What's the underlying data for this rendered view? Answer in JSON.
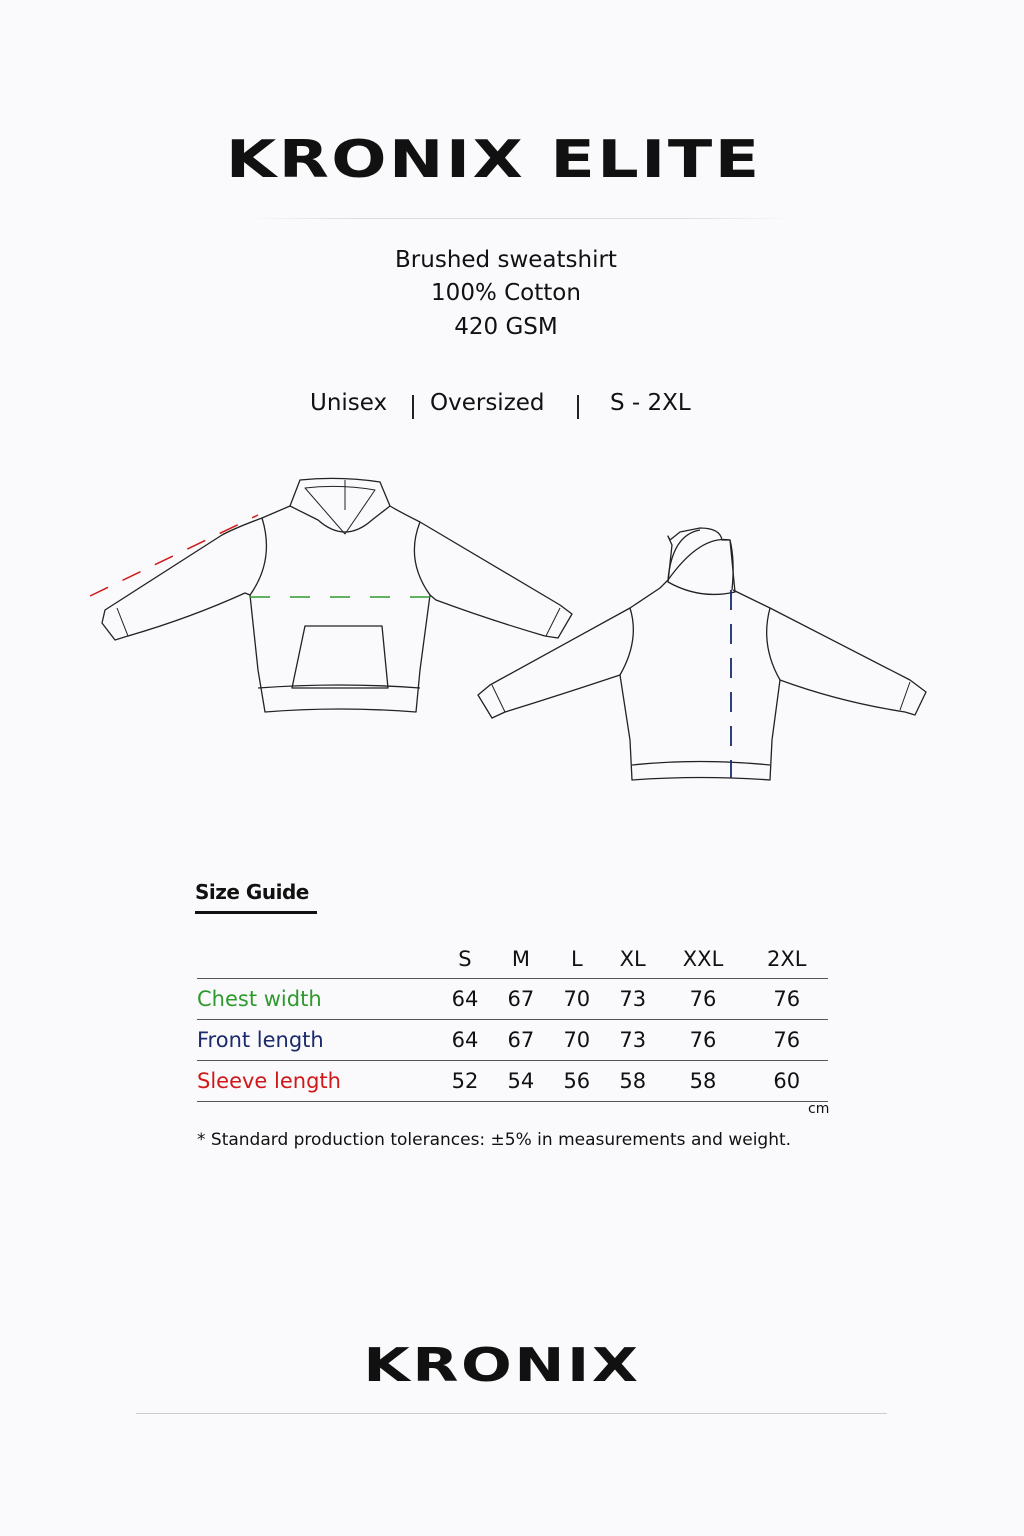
{
  "header": {
    "title": "KRONIX ELITE"
  },
  "specs": {
    "line1": "Brushed sweatshirt",
    "line2": "100% Cotton",
    "line3": "420 GSM"
  },
  "tags": {
    "fit_gender": "Unisex",
    "fit_type": "Oversized",
    "size_range": "S - 2XL"
  },
  "illustration": {
    "front_view": "hoodie-front-flat-sketch",
    "back_view": "hoodie-back-flat-sketch"
  },
  "colors": {
    "chest": "#2e9a2e",
    "front": "#1a2a6c",
    "sleeve": "#d01818"
  },
  "size_guide": {
    "title": "Size Guide",
    "sizes": [
      "S",
      "M",
      "L",
      "XL",
      "XXL",
      "2XL"
    ],
    "rows": [
      {
        "label": "Chest width",
        "values": [
          "64",
          "67",
          "70",
          "73",
          "76",
          "76"
        ]
      },
      {
        "label": "Front length",
        "values": [
          "64",
          "67",
          "70",
          "73",
          "76",
          "76"
        ]
      },
      {
        "label": "Sleeve length",
        "values": [
          "52",
          "54",
          "56",
          "58",
          "58",
          "60"
        ]
      }
    ],
    "unit": "cm",
    "note": "* Standard production tolerances: ±5% in measurements and weight."
  },
  "footer": {
    "brand": "KRONIX"
  }
}
